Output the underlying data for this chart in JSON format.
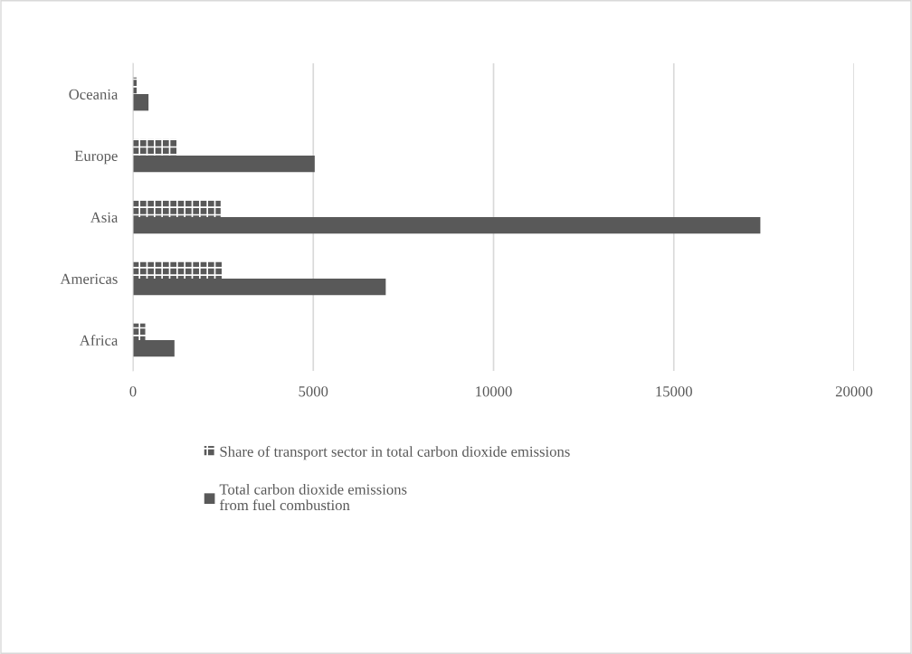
{
  "chart_data": {
    "type": "bar",
    "orientation": "horizontal",
    "categories": [
      "Oceania",
      "Europe",
      "Asia",
      "Americas",
      "Africa"
    ],
    "series": [
      {
        "name": "Share of transport sector in total carbon dioxide emissions",
        "color": "#595959",
        "values": [
          100,
          1220,
          2430,
          2470,
          340
        ]
      },
      {
        "name": "Total carbon dioxide emissions\nfrom fuel combustion",
        "color": "#595959",
        "values": [
          430,
          5040,
          17400,
          7010,
          1150
        ]
      }
    ],
    "xlim": [
      0,
      20000
    ],
    "xticks": [
      0,
      5000,
      10000,
      15000,
      20000
    ],
    "grid": "x",
    "legend": "bottom"
  }
}
